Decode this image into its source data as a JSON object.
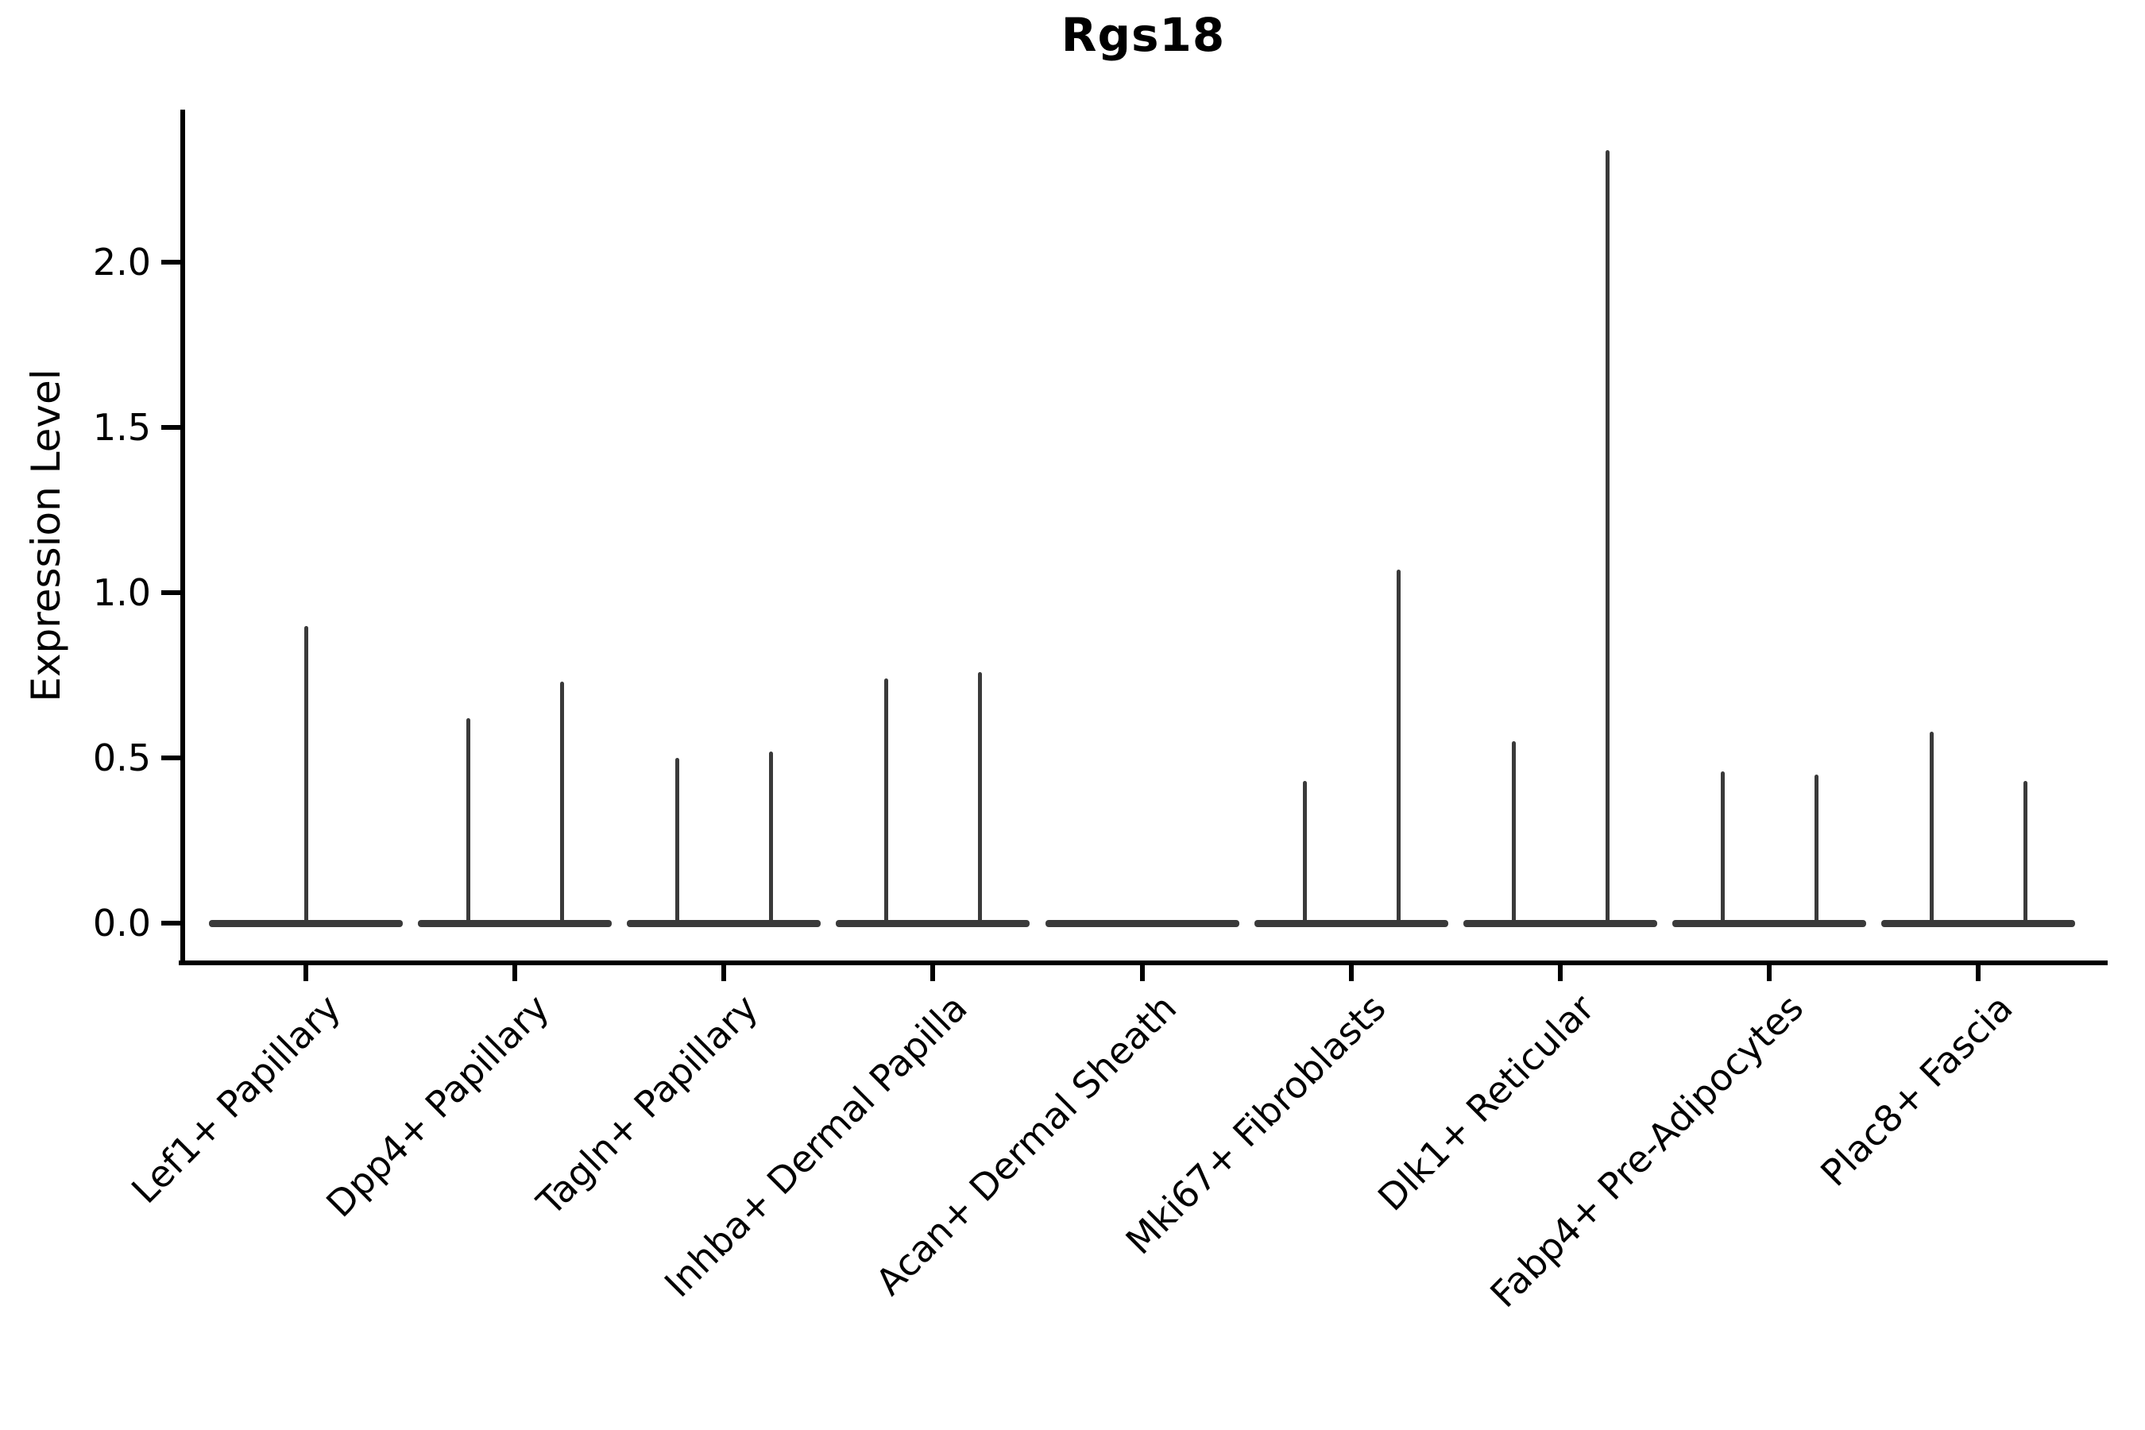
{
  "figure": {
    "background": "#ffffff"
  },
  "chart_data": {
    "type": "violin",
    "title": "Rgs18",
    "xlabel": "",
    "ylabel": "Expression Level",
    "categories": [
      "Lef1+ Papillary",
      "Dpp4+ Papillary",
      "Tagln+ Papillary",
      "Inhba+ Dermal Papilla",
      "Acan+ Dermal Sheath",
      "Mki67+ Fibroblasts",
      "Dlk1+ Reticular",
      "Fabp4+ Pre-Adipocytes",
      "Plac8+ Fascia"
    ],
    "ytick_labels": [
      "0.0",
      "0.5",
      "1.0",
      "1.5",
      "2.0"
    ],
    "ytick_values": [
      0.0,
      0.5,
      1.0,
      1.5,
      2.0
    ],
    "ylim": [
      -0.11,
      2.46
    ],
    "grid": false,
    "legend": "none",
    "baseline_value": 0.0,
    "description": "Violin plot of Rgs18 expression per fibroblast cluster; each violin is collapsed flat at 0 expression with thin density spikes rising to the maximum expressed values.",
    "violins": [
      {
        "category": "Lef1+ Papillary",
        "spikes": [
          {
            "value": 0.9,
            "pos": "center"
          }
        ]
      },
      {
        "category": "Dpp4+ Papillary",
        "spikes": [
          {
            "value": 0.62,
            "pos": "left"
          },
          {
            "value": 0.73,
            "pos": "right"
          }
        ]
      },
      {
        "category": "Tagln+ Papillary",
        "spikes": [
          {
            "value": 0.5,
            "pos": "left"
          },
          {
            "value": 0.52,
            "pos": "right"
          }
        ]
      },
      {
        "category": "Inhba+ Dermal Papilla",
        "spikes": [
          {
            "value": 0.74,
            "pos": "left"
          },
          {
            "value": 0.76,
            "pos": "right"
          }
        ]
      },
      {
        "category": "Acan+ Dermal Sheath",
        "spikes": []
      },
      {
        "category": "Mki67+ Fibroblasts",
        "spikes": [
          {
            "value": 0.43,
            "pos": "left"
          },
          {
            "value": 1.07,
            "pos": "right"
          }
        ]
      },
      {
        "category": "Dlk1+ Reticular",
        "spikes": [
          {
            "value": 0.55,
            "pos": "left"
          },
          {
            "value": 2.34,
            "pos": "right"
          }
        ]
      },
      {
        "category": "Fabp4+ Pre-Adipocytes",
        "spikes": [
          {
            "value": 0.46,
            "pos": "left"
          },
          {
            "value": 0.45,
            "pos": "right"
          }
        ]
      },
      {
        "category": "Plac8+ Fascia",
        "spikes": [
          {
            "value": 0.58,
            "pos": "left"
          },
          {
            "value": 0.43,
            "pos": "right"
          }
        ]
      }
    ],
    "colors": {
      "violin_line": "#3a3a3a",
      "axis": "#000000",
      "text": "#000000",
      "background": "#ffffff"
    }
  }
}
